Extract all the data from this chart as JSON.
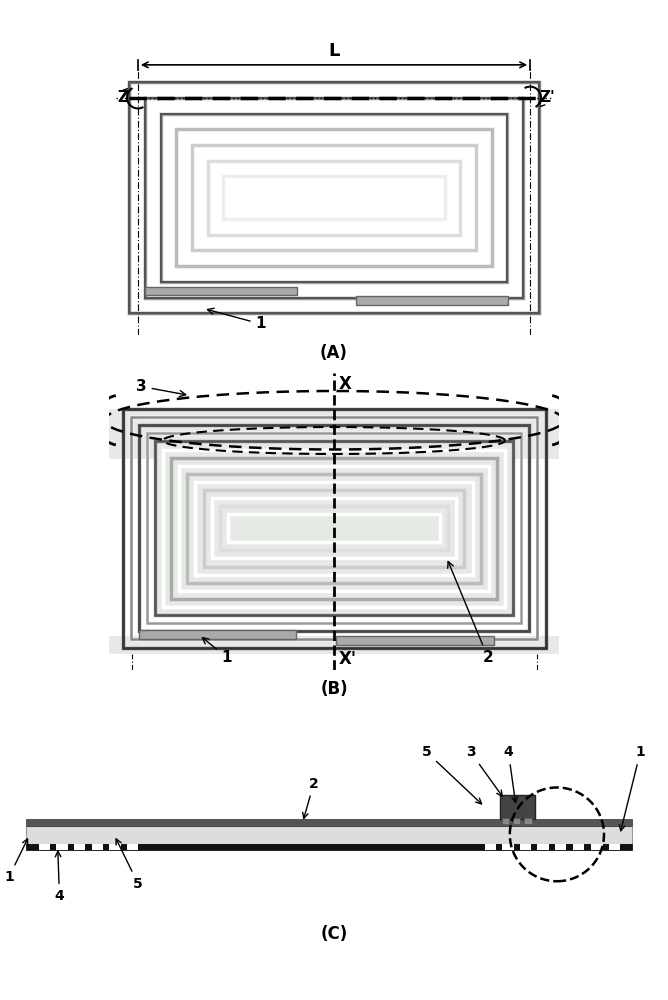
{
  "fig_width": 6.68,
  "fig_height": 10.0,
  "bg_color": "#ffffff",
  "panel_A_label": "(A)",
  "panel_B_label": "(B)",
  "panel_C_label": "(C)",
  "coil_colors": [
    "#aaaaaa",
    "#ffffff",
    "#999999",
    "#ffffff",
    "#888888",
    "#ffffff",
    "#777777",
    "#ffffff",
    "#666666",
    "#ffffff",
    "#555555",
    "#ffffff"
  ],
  "pink_fill": "#f2e0f0",
  "green_fill": "#e0f2e0",
  "gray_outer": "#e8e8e8",
  "gray_inner": "#f5f5f5"
}
